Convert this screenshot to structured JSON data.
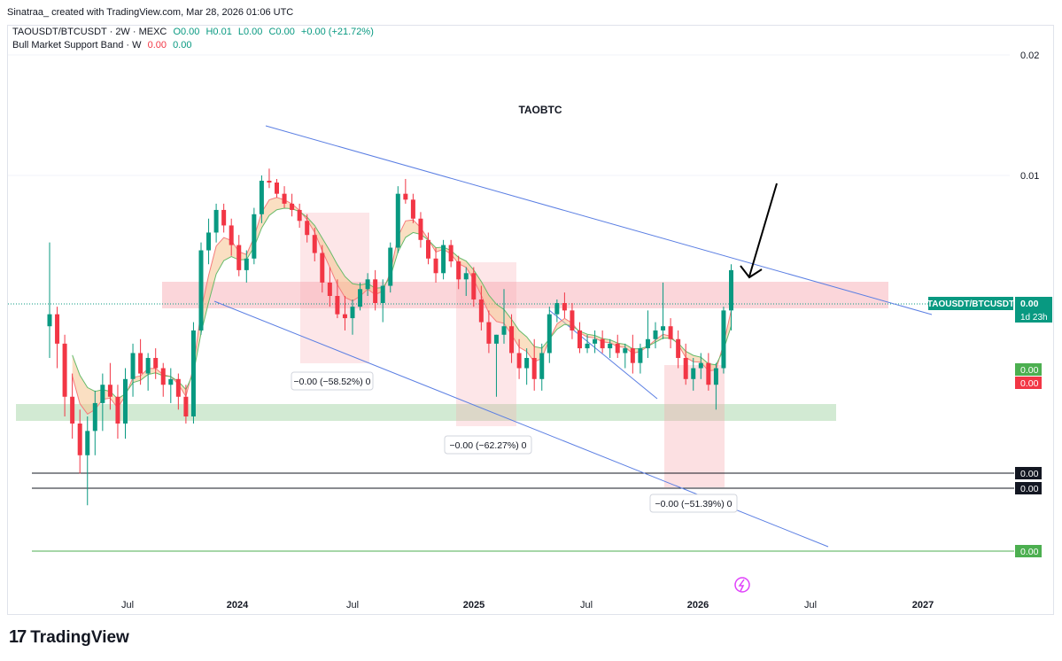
{
  "header": {
    "author_line": "Sinatraa_ created with TradingView.com, Mar 28, 2026 01:06 UTC",
    "symbol": "TAOUSDT/BTCUSDT · 2W · MEXC",
    "ohlc": {
      "o": "O0.00",
      "h": "H0.01",
      "l": "L0.00",
      "c": "C0.00",
      "change": "+0.00 (+21.72%)"
    },
    "indicator_name": "Bull Market Support Band · W",
    "indicator_values": [
      "0.00",
      "0.00"
    ]
  },
  "footer": {
    "brand": "TradingView"
  },
  "colors": {
    "bull": "#089981",
    "bear": "#f23645",
    "channel": "#5b7fe3",
    "band_fill": "#f5c48f",
    "axis_text": "#131722"
  },
  "chart_data": {
    "type": "candlestick",
    "title": "TAOBTC",
    "x_ticks": [
      "Jul",
      "2024",
      "Jul",
      "2025",
      "Jul",
      "2026",
      "Jul",
      "2027"
    ],
    "y_ticks": [
      "0.02",
      "0.01"
    ],
    "price_label": {
      "name": "TAOUSDT/BTCUSDT",
      "value": "0.00",
      "countdown": "1d 23h"
    },
    "band_labels": [
      "0.00",
      "0.00"
    ],
    "level_labels": [
      "0.00",
      "0.00",
      "0.00"
    ],
    "annotations": [
      {
        "text": "−0.00 (−58.52%) 0"
      },
      {
        "text": "−0.00 (−62.27%) 0"
      },
      {
        "text": "−0.00 (−51.39%) 0"
      }
    ],
    "candles": [
      [
        0.0042,
        0.0068,
        0.0035,
        0.0045
      ],
      [
        0.0045,
        0.0047,
        0.0033,
        0.0038
      ],
      [
        0.0038,
        0.004,
        0.0025,
        0.0028
      ],
      [
        0.0028,
        0.0032,
        0.0022,
        0.0024
      ],
      [
        0.0024,
        0.0026,
        0.0018,
        0.002
      ],
      [
        0.002,
        0.0025,
        0.0015,
        0.0023
      ],
      [
        0.0023,
        0.0029,
        0.002,
        0.0027
      ],
      [
        0.0027,
        0.0032,
        0.0023,
        0.003
      ],
      [
        0.003,
        0.0034,
        0.0026,
        0.0028
      ],
      [
        0.0028,
        0.003,
        0.0022,
        0.0024
      ],
      [
        0.0024,
        0.0033,
        0.0022,
        0.0031
      ],
      [
        0.0031,
        0.0038,
        0.0028,
        0.0036
      ],
      [
        0.0036,
        0.0039,
        0.003,
        0.0032
      ],
      [
        0.0032,
        0.0036,
        0.0029,
        0.0035
      ],
      [
        0.0035,
        0.0037,
        0.0031,
        0.0033
      ],
      [
        0.0033,
        0.0034,
        0.0028,
        0.003
      ],
      [
        0.003,
        0.0033,
        0.0027,
        0.0031
      ],
      [
        0.0031,
        0.0032,
        0.0026,
        0.0028
      ],
      [
        0.0028,
        0.003,
        0.0024,
        0.0025
      ],
      [
        0.0025,
        0.0043,
        0.0024,
        0.0041
      ],
      [
        0.0041,
        0.0068,
        0.004,
        0.0065
      ],
      [
        0.0065,
        0.0078,
        0.006,
        0.0072
      ],
      [
        0.0072,
        0.0085,
        0.0068,
        0.0082
      ],
      [
        0.0082,
        0.0085,
        0.0072,
        0.0075
      ],
      [
        0.0075,
        0.0078,
        0.0063,
        0.0067
      ],
      [
        0.0067,
        0.0071,
        0.0056,
        0.0058
      ],
      [
        0.0058,
        0.0065,
        0.0054,
        0.0062
      ],
      [
        0.0062,
        0.0083,
        0.006,
        0.008
      ],
      [
        0.008,
        0.01,
        0.0076,
        0.0097
      ],
      [
        0.0097,
        0.0104,
        0.0093,
        0.0096
      ],
      [
        0.0096,
        0.0098,
        0.0088,
        0.009
      ],
      [
        0.009,
        0.0094,
        0.0083,
        0.0085
      ],
      [
        0.0085,
        0.009,
        0.0079,
        0.0082
      ],
      [
        0.0082,
        0.0085,
        0.0074,
        0.0077
      ],
      [
        0.0077,
        0.008,
        0.0068,
        0.0071
      ],
      [
        0.0071,
        0.0074,
        0.0061,
        0.0064
      ],
      [
        0.0064,
        0.0067,
        0.0051,
        0.0054
      ],
      [
        0.0054,
        0.0059,
        0.0047,
        0.005
      ],
      [
        0.005,
        0.0055,
        0.0044,
        0.0045
      ],
      [
        0.0045,
        0.005,
        0.0041,
        0.0044
      ],
      [
        0.0044,
        0.0049,
        0.004,
        0.0047
      ],
      [
        0.0047,
        0.0054,
        0.0046,
        0.0052
      ],
      [
        0.0052,
        0.0057,
        0.005,
        0.0055
      ],
      [
        0.0055,
        0.0058,
        0.0046,
        0.0048
      ],
      [
        0.0048,
        0.0055,
        0.0043,
        0.0053
      ],
      [
        0.0053,
        0.0068,
        0.0051,
        0.0066
      ],
      [
        0.0066,
        0.0094,
        0.0064,
        0.009
      ],
      [
        0.009,
        0.0098,
        0.0085,
        0.0087
      ],
      [
        0.0087,
        0.009,
        0.0076,
        0.0078
      ],
      [
        0.0078,
        0.0081,
        0.0066,
        0.0069
      ],
      [
        0.0069,
        0.0072,
        0.006,
        0.0062
      ],
      [
        0.0062,
        0.0066,
        0.0054,
        0.0057
      ],
      [
        0.0057,
        0.0069,
        0.0055,
        0.0067
      ],
      [
        0.0067,
        0.0069,
        0.0059,
        0.0061
      ],
      [
        0.0061,
        0.0063,
        0.0052,
        0.0055
      ],
      [
        0.0055,
        0.0059,
        0.005,
        0.0057
      ],
      [
        0.0057,
        0.0059,
        0.0047,
        0.0049
      ],
      [
        0.0049,
        0.0053,
        0.0041,
        0.0043
      ],
      [
        0.0043,
        0.0046,
        0.0036,
        0.0038
      ],
      [
        0.0038,
        0.004,
        0.0028,
        0.004
      ],
      [
        0.004,
        0.0052,
        0.0038,
        0.0042
      ],
      [
        0.0042,
        0.0045,
        0.0034,
        0.0036
      ],
      [
        0.0036,
        0.0039,
        0.0031,
        0.0033
      ],
      [
        0.0033,
        0.0037,
        0.003,
        0.0035
      ],
      [
        0.0035,
        0.0039,
        0.0029,
        0.0031
      ],
      [
        0.0031,
        0.0038,
        0.0029,
        0.0036
      ],
      [
        0.0036,
        0.0047,
        0.0034,
        0.0045
      ],
      [
        0.0045,
        0.0049,
        0.0043,
        0.0048
      ],
      [
        0.0048,
        0.0051,
        0.0044,
        0.0046
      ],
      [
        0.0046,
        0.0048,
        0.0039,
        0.0041
      ],
      [
        0.0041,
        0.0043,
        0.0036,
        0.0037
      ],
      [
        0.0037,
        0.004,
        0.0036,
        0.0038
      ],
      [
        0.0038,
        0.0041,
        0.0036,
        0.0039
      ],
      [
        0.0039,
        0.0041,
        0.0036,
        0.0037
      ],
      [
        0.0037,
        0.0039,
        0.0035,
        0.0038
      ],
      [
        0.0038,
        0.004,
        0.0035,
        0.0036
      ],
      [
        0.0036,
        0.0038,
        0.0033,
        0.0037
      ],
      [
        0.0037,
        0.004,
        0.0032,
        0.0034
      ],
      [
        0.0034,
        0.0038,
        0.0032,
        0.0037
      ],
      [
        0.0037,
        0.0046,
        0.0035,
        0.0039
      ],
      [
        0.0039,
        0.0043,
        0.0037,
        0.0041
      ],
      [
        0.0041,
        0.0054,
        0.0039,
        0.0042
      ],
      [
        0.0042,
        0.0044,
        0.0037,
        0.0039
      ],
      [
        0.0039,
        0.0041,
        0.0033,
        0.0035
      ],
      [
        0.0035,
        0.0038,
        0.003,
        0.0031
      ],
      [
        0.0031,
        0.0035,
        0.0029,
        0.0033
      ],
      [
        0.0033,
        0.0036,
        0.0031,
        0.0034
      ],
      [
        0.0034,
        0.0036,
        0.0029,
        0.003
      ],
      [
        0.003,
        0.0034,
        0.0026,
        0.0033
      ],
      [
        0.0033,
        0.0047,
        0.0032,
        0.0046
      ],
      [
        0.0046,
        0.006,
        0.0041,
        0.0058
      ]
    ]
  }
}
